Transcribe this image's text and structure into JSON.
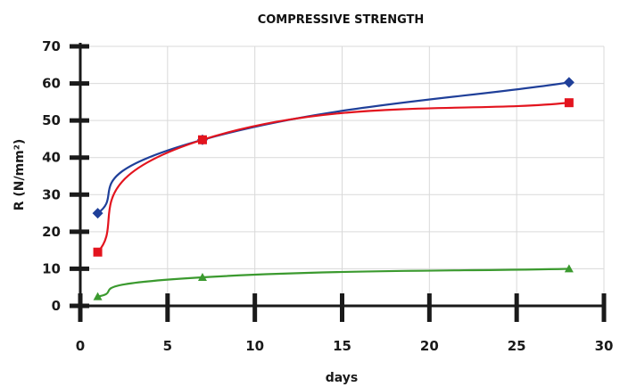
{
  "chart_data": {
    "type": "line",
    "title": "COMPRESSIVE STRENGTH",
    "xlabel": "days",
    "ylabel": "R (N/mm²)",
    "xlim": [
      0,
      30
    ],
    "ylim": [
      0,
      70
    ],
    "x_ticks": [
      0,
      5,
      10,
      15,
      20,
      25,
      30
    ],
    "y_ticks": [
      0,
      10,
      20,
      30,
      40,
      50,
      60,
      70
    ],
    "grid": true,
    "legend": "none",
    "series": [
      {
        "color": "#1f3f99",
        "marker": "diamond",
        "x": [
          1,
          7,
          28
        ],
        "y": [
          25,
          44.8,
          60.3
        ]
      },
      {
        "color": "#e3141e",
        "marker": "square",
        "x": [
          1,
          7,
          28
        ],
        "y": [
          14.5,
          44.8,
          54.8
        ]
      },
      {
        "color": "#3b9a2f",
        "marker": "triangle",
        "x": [
          1,
          7,
          28
        ],
        "y": [
          2.5,
          7.7,
          10
        ]
      }
    ]
  }
}
